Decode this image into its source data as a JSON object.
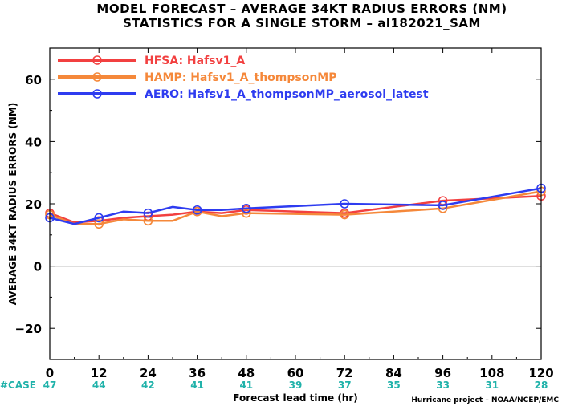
{
  "chart_data": {
    "type": "line",
    "title": "MODEL FORECAST – AVERAGE 34KT RADIUS ERRORS (NM)",
    "subtitle": "STATISTICS FOR A SINGLE STORM – al182021_SAM",
    "xlabel": "Forecast lead time (hr)",
    "ylabel": "AVERAGE 34KT RADIUS ERRORS (NM)",
    "xlim": [
      0,
      120
    ],
    "ylim": [
      -30,
      70
    ],
    "xticks": [
      "0",
      "12",
      "24",
      "36",
      "48",
      "60",
      "72",
      "84",
      "96",
      "108",
      "120"
    ],
    "yticks": [
      "60",
      "40",
      "20",
      "0",
      "−20"
    ],
    "case_label": "#CASE",
    "cases": [
      "47",
      "44",
      "42",
      "41",
      "41",
      "39",
      "37",
      "35",
      "33",
      "31",
      "28"
    ],
    "credit": "Hurricane project – NOAA/NCEP/EMC",
    "legend_position": "top-left",
    "series": [
      {
        "name": "HFSA: Hafsv1_A",
        "color": "#f24040",
        "x": [
          0,
          6,
          12,
          18,
          24,
          30,
          36,
          42,
          48,
          72,
          96,
          120
        ],
        "y": [
          17,
          14,
          14.5,
          15.5,
          16,
          16.5,
          17.5,
          17,
          18,
          17,
          21,
          22.5
        ]
      },
      {
        "name": "HAMP: Hafsv1_A_thompsonMP",
        "color": "#f5883a",
        "x": [
          0,
          6,
          12,
          18,
          24,
          30,
          36,
          42,
          48,
          72,
          96,
          120
        ],
        "y": [
          16.5,
          13.5,
          13.5,
          15,
          14.5,
          14.5,
          17.5,
          16,
          17,
          16.5,
          18.5,
          24
        ]
      },
      {
        "name": "AERO: Hafsv1_A_thompsonMP_aerosol_latest",
        "color": "#2e3cf0",
        "x": [
          0,
          6,
          12,
          18,
          24,
          30,
          36,
          42,
          48,
          72,
          96,
          120
        ],
        "y": [
          15.5,
          13.5,
          15.5,
          17.5,
          17,
          19,
          18,
          18,
          18.5,
          20,
          19.5,
          25
        ]
      }
    ]
  }
}
